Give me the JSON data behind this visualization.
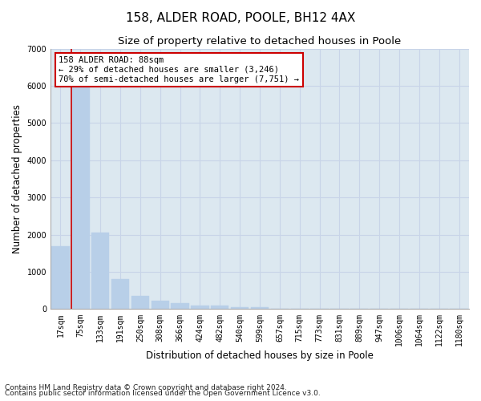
{
  "title": "158, ALDER ROAD, POOLE, BH12 4AX",
  "subtitle": "Size of property relative to detached houses in Poole",
  "xlabel": "Distribution of detached houses by size in Poole",
  "ylabel": "Number of detached properties",
  "footnote1": "Contains HM Land Registry data © Crown copyright and database right 2024.",
  "footnote2": "Contains public sector information licensed under the Open Government Licence v3.0.",
  "bar_labels": [
    "17sqm",
    "75sqm",
    "133sqm",
    "191sqm",
    "250sqm",
    "308sqm",
    "366sqm",
    "424sqm",
    "482sqm",
    "540sqm",
    "599sqm",
    "657sqm",
    "715sqm",
    "773sqm",
    "831sqm",
    "889sqm",
    "947sqm",
    "1006sqm",
    "1064sqm",
    "1122sqm",
    "1180sqm"
  ],
  "bar_values": [
    1700,
    6100,
    2050,
    800,
    350,
    230,
    155,
    90,
    90,
    50,
    50,
    10,
    0,
    0,
    0,
    0,
    0,
    0,
    0,
    0,
    0
  ],
  "bar_color": "#b8cfe8",
  "bar_edgecolor": "#b8cfe8",
  "highlight_bar_index": 1,
  "highlight_line_color": "#cc0000",
  "annotation_text": "158 ALDER ROAD: 88sqm\n← 29% of detached houses are smaller (3,246)\n70% of semi-detached houses are larger (7,751) →",
  "annotation_box_edgecolor": "#cc0000",
  "annotation_box_facecolor": "#ffffff",
  "ylim": [
    0,
    7000
  ],
  "yticks": [
    0,
    1000,
    2000,
    3000,
    4000,
    5000,
    6000,
    7000
  ],
  "grid_color": "#c8d4e8",
  "background_color": "#dce8f0",
  "title_fontsize": 11,
  "subtitle_fontsize": 9.5,
  "axis_label_fontsize": 8.5,
  "tick_fontsize": 7,
  "annotation_fontsize": 7.5,
  "footnote_fontsize": 6.5
}
